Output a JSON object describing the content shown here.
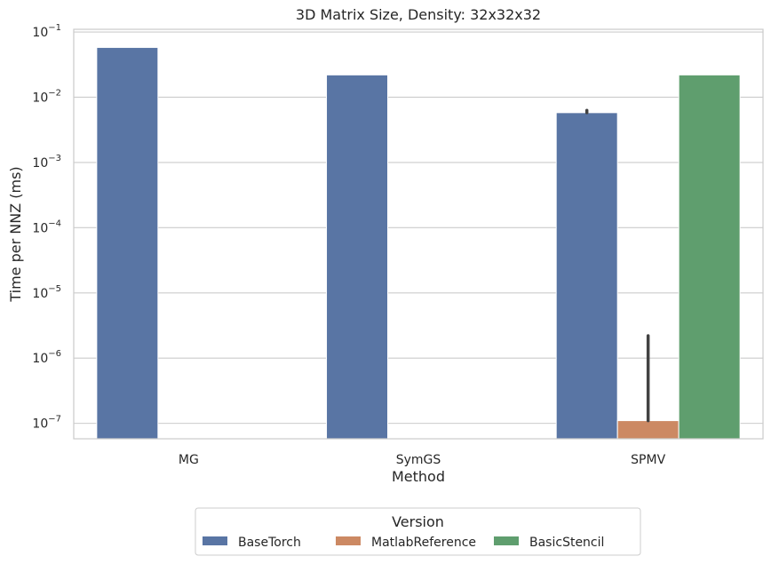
{
  "chart_data": {
    "type": "bar",
    "title": "3D Matrix Size, Density: 32x32x32",
    "xlabel": "Method",
    "ylabel": "Time per NNZ (ms)",
    "yscale": "log",
    "ylim": [
      5.8e-08,
      0.11
    ],
    "yticks": [
      {
        "value": 1e-07,
        "base": "10",
        "exp": "−7"
      },
      {
        "value": 1e-06,
        "base": "10",
        "exp": "−6"
      },
      {
        "value": 1e-05,
        "base": "10",
        "exp": "−5"
      },
      {
        "value": 0.0001,
        "base": "10",
        "exp": "−4"
      },
      {
        "value": 0.001,
        "base": "10",
        "exp": "−3"
      },
      {
        "value": 0.01,
        "base": "10",
        "exp": "−2"
      },
      {
        "value": 0.1,
        "base": "10",
        "exp": "−1"
      }
    ],
    "grid": true,
    "categories": [
      "MG",
      "SymGS",
      "SPMV"
    ],
    "series": [
      {
        "name": "BaseTorch",
        "color": "#5975a4",
        "values": [
          0.058,
          0.022,
          0.0058
        ],
        "error_high": [
          null,
          null,
          0.0063
        ]
      },
      {
        "name": "MatlabReference",
        "color": "#cc8963",
        "values": [
          null,
          null,
          1.1e-07
        ],
        "error_high": [
          null,
          null,
          2.2e-06
        ]
      },
      {
        "name": "BasicStencil",
        "color": "#5f9e6e",
        "values": [
          null,
          null,
          0.022
        ],
        "error_high": [
          null,
          null,
          null
        ]
      }
    ],
    "legend": {
      "title": "Version",
      "placement": "bottom-center"
    }
  }
}
